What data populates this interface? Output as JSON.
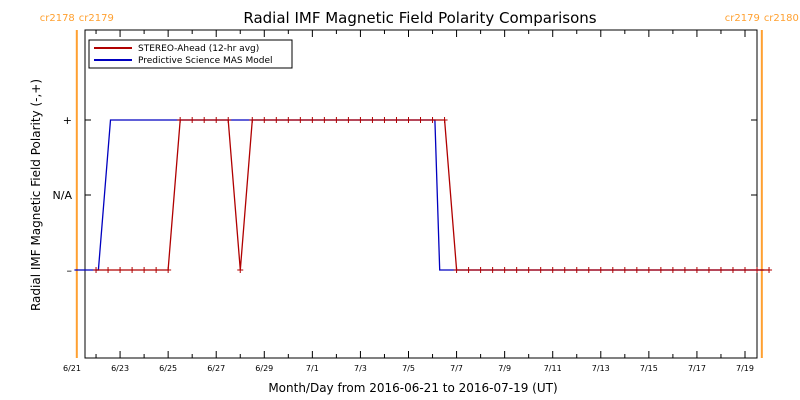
{
  "chart_data": {
    "type": "line",
    "title": "Radial IMF Magnetic Field Polarity Comparisons",
    "xlabel": "Month/Day from 2016-06-21 to 2016-07-19 (UT)",
    "ylabel": "Radial IMF Magnetic Field Polarity (-,+)",
    "xlim": [
      0,
      29
    ],
    "ylim": [
      -2,
      2
    ],
    "x_ticks": [
      {
        "x": 0,
        "label": "6/21"
      },
      {
        "x": 2,
        "label": "6/23"
      },
      {
        "x": 4,
        "label": "6/25"
      },
      {
        "x": 6,
        "label": "6/27"
      },
      {
        "x": 8,
        "label": "6/29"
      },
      {
        "x": 10,
        "label": "7/1"
      },
      {
        "x": 12,
        "label": "7/3"
      },
      {
        "x": 14,
        "label": "7/5"
      },
      {
        "x": 16,
        "label": "7/7"
      },
      {
        "x": 18,
        "label": "7/9"
      },
      {
        "x": 20,
        "label": "7/11"
      },
      {
        "x": 22,
        "label": "7/13"
      },
      {
        "x": 24,
        "label": "7/15"
      },
      {
        "x": 26,
        "label": "7/17"
      },
      {
        "x": 28,
        "label": "7/19"
      }
    ],
    "y_ticks": [
      {
        "y": 1,
        "label": "+"
      },
      {
        "y": 0,
        "label": "N/A"
      },
      {
        "y": -1,
        "label": "–"
      }
    ],
    "series": [
      {
        "name": "STEREO-Ahead (12-hr avg)",
        "color": "#b00000",
        "markers": true,
        "points": [
          [
            1,
            -1
          ],
          [
            1.5,
            -1
          ],
          [
            2,
            -1
          ],
          [
            2.5,
            -1
          ],
          [
            3,
            -1
          ],
          [
            3.5,
            -1
          ],
          [
            4,
            -1
          ],
          [
            4.5,
            1
          ],
          [
            5,
            1
          ],
          [
            5.5,
            1
          ],
          [
            6,
            1
          ],
          [
            6.5,
            1
          ],
          [
            7,
            -1
          ],
          [
            7.5,
            1
          ],
          [
            8,
            1
          ],
          [
            8.5,
            1
          ],
          [
            9,
            1
          ],
          [
            9.5,
            1
          ],
          [
            10,
            1
          ],
          [
            10.5,
            1
          ],
          [
            11,
            1
          ],
          [
            11.5,
            1
          ],
          [
            12,
            1
          ],
          [
            12.5,
            1
          ],
          [
            13,
            1
          ],
          [
            13.5,
            1
          ],
          [
            14,
            1
          ],
          [
            14.5,
            1
          ],
          [
            15,
            1
          ],
          [
            15.5,
            1
          ],
          [
            16,
            -1
          ],
          [
            16.5,
            -1
          ],
          [
            17,
            -1
          ],
          [
            17.5,
            -1
          ],
          [
            18,
            -1
          ],
          [
            18.5,
            -1
          ],
          [
            19,
            -1
          ],
          [
            19.5,
            -1
          ],
          [
            20,
            -1
          ],
          [
            20.5,
            -1
          ],
          [
            21,
            -1
          ],
          [
            21.5,
            -1
          ],
          [
            22,
            -1
          ],
          [
            22.5,
            -1
          ],
          [
            23,
            -1
          ],
          [
            23.5,
            -1
          ],
          [
            24,
            -1
          ],
          [
            24.5,
            -1
          ],
          [
            25,
            -1
          ],
          [
            25.5,
            -1
          ],
          [
            26,
            -1
          ],
          [
            26.5,
            -1
          ],
          [
            27,
            -1
          ],
          [
            27.5,
            -1
          ],
          [
            28,
            -1
          ],
          [
            28.5,
            -1
          ],
          [
            29,
            -1
          ]
        ]
      },
      {
        "name": "Predictive Science MAS Model",
        "color": "#0000c0",
        "markers": false,
        "points": [
          [
            0.1,
            -1
          ],
          [
            1.1,
            -1
          ],
          [
            1.6,
            1
          ],
          [
            15.1,
            1
          ],
          [
            15.3,
            -1
          ],
          [
            28.8,
            -1
          ]
        ]
      }
    ],
    "carrington_boundaries": [
      {
        "x": 0.2,
        "labels": [
          "cr2178",
          "cr2179"
        ],
        "color": "#ffa030"
      },
      {
        "x": 28.7,
        "labels": [
          "cr2179",
          "cr2180"
        ],
        "color": "#ffa030"
      }
    ],
    "legend_position": "top-left",
    "grid": false
  }
}
